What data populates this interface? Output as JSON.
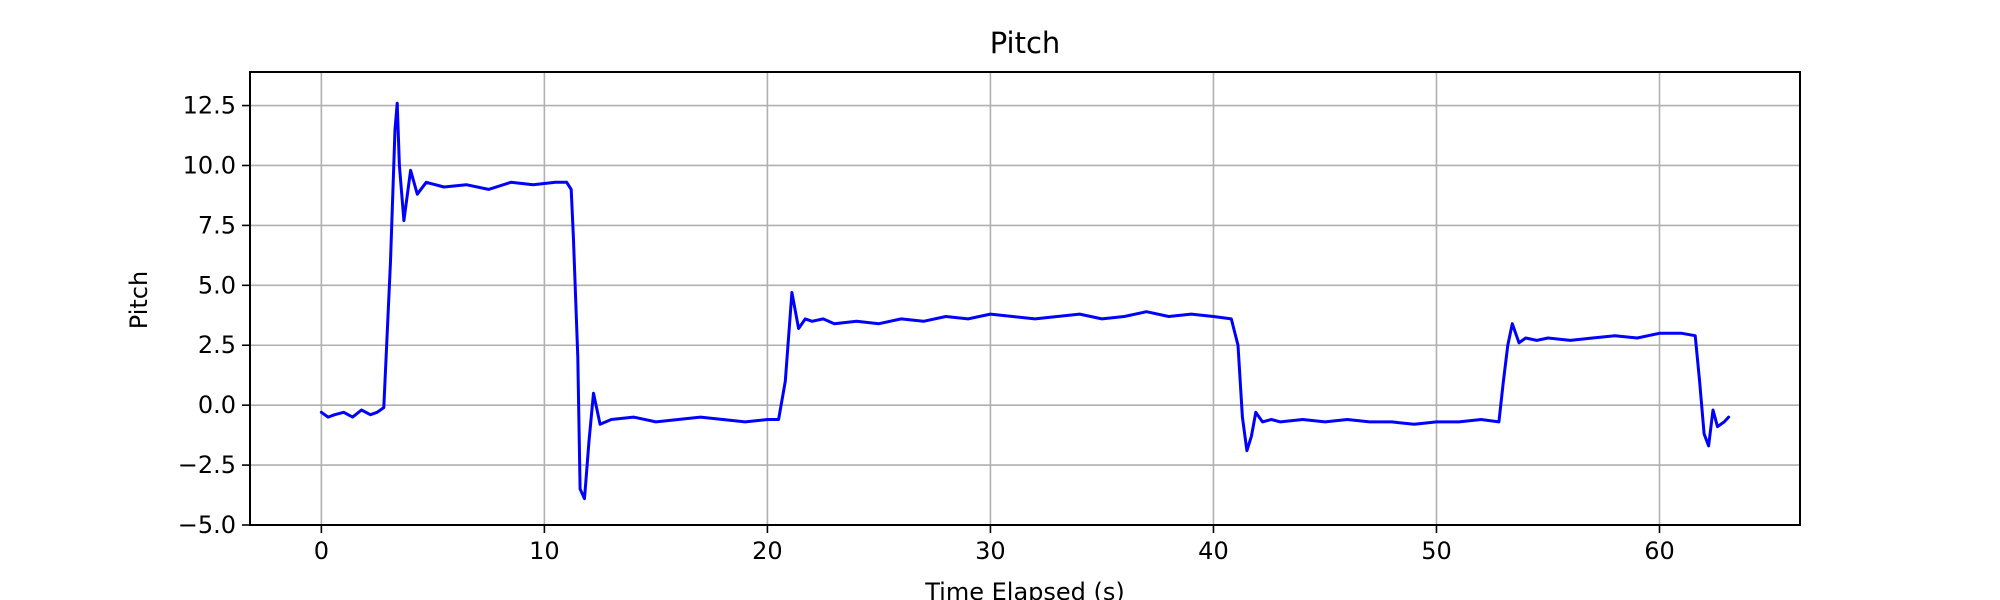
{
  "chart_data": {
    "type": "line",
    "title": "Pitch",
    "xlabel": "Time Elapsed (s)",
    "ylabel": "Pitch",
    "xlim": [
      -3.2,
      66.3
    ],
    "ylim": [
      -5.0,
      13.9
    ],
    "xticks": [
      0,
      10,
      20,
      30,
      40,
      50,
      60
    ],
    "yticks": [
      -5.0,
      -2.5,
      0.0,
      2.5,
      5.0,
      7.5,
      10.0,
      12.5
    ],
    "xtick_labels": [
      "0",
      "10",
      "20",
      "30",
      "40",
      "50",
      "60"
    ],
    "ytick_labels": [
      "−5.0",
      "−2.5",
      "0.0",
      "2.5",
      "5.0",
      "7.5",
      "10.0",
      "12.5"
    ],
    "grid": true,
    "series": [
      {
        "color": "#0000ff",
        "x": [
          0.0,
          0.3,
          0.6,
          1.0,
          1.4,
          1.8,
          2.2,
          2.5,
          2.8,
          3.1,
          3.3,
          3.4,
          3.5,
          3.7,
          4.0,
          4.3,
          4.7,
          5.5,
          6.5,
          7.5,
          8.5,
          9.5,
          10.5,
          11.0,
          11.2,
          11.3,
          11.5,
          11.6,
          11.8,
          12.0,
          12.2,
          12.5,
          13.0,
          14.0,
          15.0,
          16.0,
          17.0,
          18.0,
          19.0,
          20.0,
          20.5,
          20.8,
          21.1,
          21.4,
          21.7,
          22.0,
          22.5,
          23.0,
          24.0,
          25.0,
          26.0,
          27.0,
          28.0,
          29.0,
          30.0,
          31.0,
          32.0,
          33.0,
          34.0,
          35.0,
          36.0,
          37.0,
          38.0,
          39.0,
          40.0,
          40.8,
          41.1,
          41.3,
          41.5,
          41.7,
          41.9,
          42.2,
          42.6,
          43.0,
          44.0,
          45.0,
          46.0,
          47.0,
          48.0,
          49.0,
          50.0,
          51.0,
          52.0,
          52.8,
          53.0,
          53.2,
          53.4,
          53.7,
          54.0,
          54.5,
          55.0,
          56.0,
          57.0,
          58.0,
          59.0,
          60.0,
          61.0,
          61.6,
          61.8,
          62.0,
          62.2,
          62.4,
          62.6,
          62.9,
          63.1
        ],
        "y": [
          -0.3,
          -0.5,
          -0.4,
          -0.3,
          -0.5,
          -0.2,
          -0.4,
          -0.3,
          -0.1,
          6.0,
          11.5,
          12.6,
          10.0,
          7.7,
          9.8,
          8.8,
          9.3,
          9.1,
          9.2,
          9.0,
          9.3,
          9.2,
          9.3,
          9.3,
          9.0,
          7.0,
          2.0,
          -3.5,
          -3.9,
          -1.5,
          0.5,
          -0.8,
          -0.6,
          -0.5,
          -0.7,
          -0.6,
          -0.5,
          -0.6,
          -0.7,
          -0.6,
          -0.6,
          1.0,
          4.7,
          3.2,
          3.6,
          3.5,
          3.6,
          3.4,
          3.5,
          3.4,
          3.6,
          3.5,
          3.7,
          3.6,
          3.8,
          3.7,
          3.6,
          3.7,
          3.8,
          3.6,
          3.7,
          3.9,
          3.7,
          3.8,
          3.7,
          3.6,
          2.5,
          -0.5,
          -1.9,
          -1.3,
          -0.3,
          -0.7,
          -0.6,
          -0.7,
          -0.6,
          -0.7,
          -0.6,
          -0.7,
          -0.7,
          -0.8,
          -0.7,
          -0.7,
          -0.6,
          -0.7,
          1.0,
          2.5,
          3.4,
          2.6,
          2.8,
          2.7,
          2.8,
          2.7,
          2.8,
          2.9,
          2.8,
          3.0,
          3.0,
          2.9,
          1.0,
          -1.2,
          -1.7,
          -0.2,
          -0.9,
          -0.7,
          -0.5
        ]
      }
    ]
  }
}
